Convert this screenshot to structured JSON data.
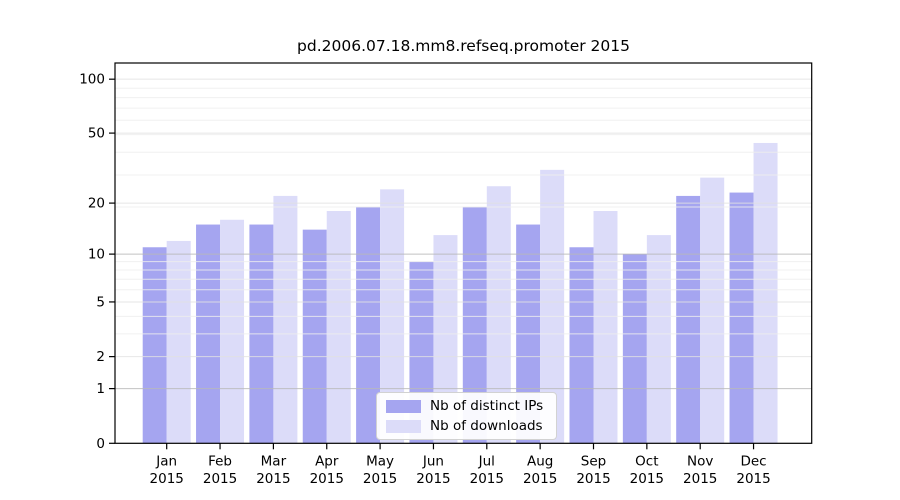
{
  "chart_data": {
    "type": "bar",
    "title": "pd.2006.07.18.mm8.refseq.promoter 2015",
    "year_label": "2015",
    "categories": [
      "Jan",
      "Feb",
      "Mar",
      "Apr",
      "May",
      "Jun",
      "Jul",
      "Aug",
      "Sep",
      "Oct",
      "Nov",
      "Dec"
    ],
    "series": [
      {
        "name": "Nb of distinct IPs",
        "color": "#a5a5f0",
        "values": [
          11,
          15,
          15,
          14,
          19,
          9,
          19,
          15,
          11,
          10,
          22,
          23
        ]
      },
      {
        "name": "Nb of downloads",
        "color": "#dcdcf9",
        "values": [
          12,
          16,
          22,
          18,
          24,
          13,
          25,
          31,
          18,
          13,
          28,
          44
        ]
      }
    ],
    "yscale": "log10(value+1)",
    "yticks": [
      0,
      1,
      2,
      5,
      10,
      20,
      50,
      100
    ],
    "minor_gridlines": [
      3,
      4,
      6,
      7,
      8,
      9,
      19,
      29,
      39,
      49,
      59,
      69,
      79,
      89
    ],
    "emphasized_gridlines": [
      1,
      10
    ],
    "ylim": [
      0,
      123
    ],
    "xlabel": "",
    "ylabel": "",
    "grid": true,
    "legend_position": "lower center",
    "colors": {
      "axis": "#000000",
      "major_grid": "#b8b8b8",
      "tick_grid": "#e2e2e2",
      "minor_grid": "#ededed",
      "background": "#ffffff"
    }
  }
}
